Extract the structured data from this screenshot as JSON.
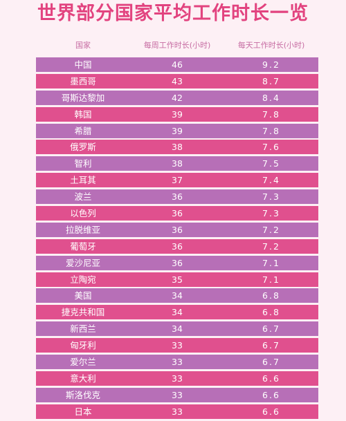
{
  "chart_data": {
    "type": "table",
    "title": "世界部分国家平均工作时长一览",
    "columns": [
      "国家",
      "每周工作时长(小时)",
      "每天工作时长(小时)"
    ],
    "rows": [
      {
        "country": "中国",
        "weekly": "46",
        "daily": "9.2"
      },
      {
        "country": "墨西哥",
        "weekly": "43",
        "daily": "8.7"
      },
      {
        "country": "哥斯达黎加",
        "weekly": "42",
        "daily": "8.4"
      },
      {
        "country": "韩国",
        "weekly": "39",
        "daily": "7.8"
      },
      {
        "country": "希腊",
        "weekly": "39",
        "daily": "7.8"
      },
      {
        "country": "俄罗斯",
        "weekly": "38",
        "daily": "7.6"
      },
      {
        "country": "智利",
        "weekly": "38",
        "daily": "7.5"
      },
      {
        "country": "土耳其",
        "weekly": "37",
        "daily": "7.4"
      },
      {
        "country": "波兰",
        "weekly": "36",
        "daily": "7.3"
      },
      {
        "country": "以色列",
        "weekly": "36",
        "daily": "7.3"
      },
      {
        "country": "拉脱维亚",
        "weekly": "36",
        "daily": "7.2"
      },
      {
        "country": "葡萄牙",
        "weekly": "36",
        "daily": "7.2"
      },
      {
        "country": "爱沙尼亚",
        "weekly": "36",
        "daily": "7.1"
      },
      {
        "country": "立陶宛",
        "weekly": "35",
        "daily": "7.1"
      },
      {
        "country": "美国",
        "weekly": "34",
        "daily": "6.8"
      },
      {
        "country": "捷克共和国",
        "weekly": "34",
        "daily": "6.8"
      },
      {
        "country": "新西兰",
        "weekly": "34",
        "daily": "6.7"
      },
      {
        "country": "匈牙利",
        "weekly": "33",
        "daily": "6.7"
      },
      {
        "country": "爱尔兰",
        "weekly": "33",
        "daily": "6.7"
      },
      {
        "country": "意大利",
        "weekly": "33",
        "daily": "6.6"
      },
      {
        "country": "斯洛伐克",
        "weekly": "33",
        "daily": "6.6"
      },
      {
        "country": "日本",
        "weekly": "33",
        "daily": "6.6"
      }
    ]
  },
  "colors": {
    "title": "#e2437f",
    "header_text": "#c76da3",
    "row_purple": "#b76fb7",
    "row_pink": "#e0508e",
    "background": "#fdf0f5"
  }
}
